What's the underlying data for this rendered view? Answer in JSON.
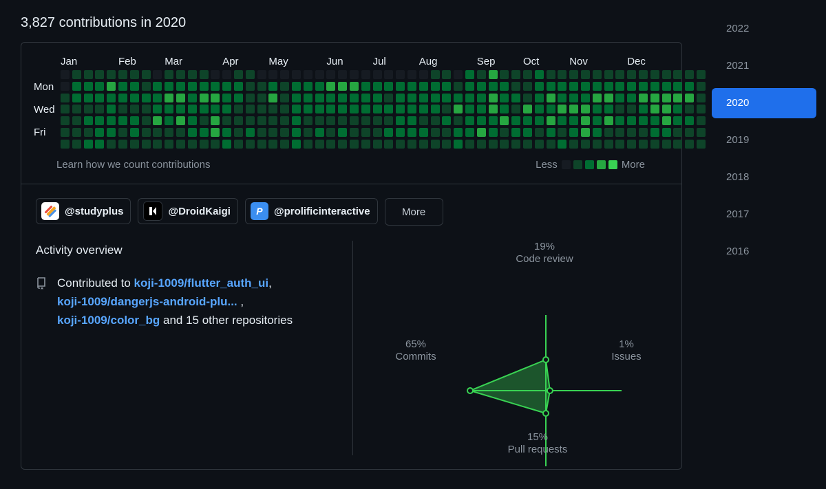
{
  "header": {
    "title": "3,827 contributions in 2020"
  },
  "calendar": {
    "months": [
      {
        "label": "Jan",
        "week": 0
      },
      {
        "label": "Feb",
        "week": 5
      },
      {
        "label": "Mar",
        "week": 9
      },
      {
        "label": "Apr",
        "week": 14
      },
      {
        "label": "May",
        "week": 18
      },
      {
        "label": "Jun",
        "week": 23
      },
      {
        "label": "Jul",
        "week": 27
      },
      {
        "label": "Aug",
        "week": 31
      },
      {
        "label": "Sep",
        "week": 36
      },
      {
        "label": "Oct",
        "week": 40
      },
      {
        "label": "Nov",
        "week": 44
      },
      {
        "label": "Dec",
        "week": 49
      }
    ],
    "day_labels": [
      "Mon",
      "Wed",
      "Fri"
    ],
    "levels_by_week": [
      "0011111",
      "1221111",
      "1221212",
      "1221222",
      "1322221",
      "1221211",
      "1221221",
      "1121111",
      "0222311",
      "1232211",
      "1232311",
      "1222221",
      "1232121",
      "0232331",
      "0222122",
      "1221111",
      "1111121",
      "0111111",
      "0231111",
      "0111111",
      "0222222",
      "0222111",
      "0222121",
      "0322111",
      "0322121",
      "0322111",
      "0222111",
      "0222111",
      "0212121",
      "0222221",
      "0222221",
      "0222121",
      "1222111",
      "1221211",
      "0123122",
      "2222221",
      "1222231",
      "3233221",
      "1222311",
      "1121221",
      "1113221",
      "2222211",
      "1232321",
      "1223212",
      "1223221",
      "1223331",
      "1232221",
      "1232311",
      "1221211",
      "1221211",
      "1232211",
      "1233221",
      "1233321",
      "1232211",
      "1231211",
      "1111111"
    ],
    "level_colors": [
      "#161b22",
      "#0e4429",
      "#006d32",
      "#26a641",
      "#39d353"
    ],
    "learn_link": "Learn how we count contributions",
    "legend_less": "Less",
    "legend_more": "More"
  },
  "orgs": [
    {
      "name": "@studyplus",
      "icon": "studyplus-logo-icon"
    },
    {
      "name": "@DroidKaigi",
      "icon": "droidkaigi-logo-icon"
    },
    {
      "name": "@prolificinteractive",
      "icon": "prolific-logo-icon"
    }
  ],
  "orgs_more_label": "More",
  "activity": {
    "title": "Activity overview",
    "prefix": "Contributed to ",
    "repos": [
      "koji-1009/flutter_auth_ui",
      "koji-1009/dangerjs-android-plu...",
      "koji-1009/color_bg"
    ],
    "sep1": ",",
    "sep2": " ,",
    "suffix": " and 15 other repositories"
  },
  "chart_data": {
    "type": "radar",
    "axes": [
      {
        "name": "Code review",
        "percent": 19,
        "label": "19%"
      },
      {
        "name": "Issues",
        "percent": 1,
        "label": "1%"
      },
      {
        "name": "Pull requests",
        "percent": 15,
        "label": "15%"
      },
      {
        "name": "Commits",
        "percent": 65,
        "label": "65%"
      }
    ],
    "color": "#39d353"
  },
  "years": [
    {
      "label": "2022",
      "selected": false
    },
    {
      "label": "2021",
      "selected": false
    },
    {
      "label": "2020",
      "selected": true
    },
    {
      "label": "2019",
      "selected": false
    },
    {
      "label": "2018",
      "selected": false
    },
    {
      "label": "2017",
      "selected": false
    },
    {
      "label": "2016",
      "selected": false
    }
  ]
}
